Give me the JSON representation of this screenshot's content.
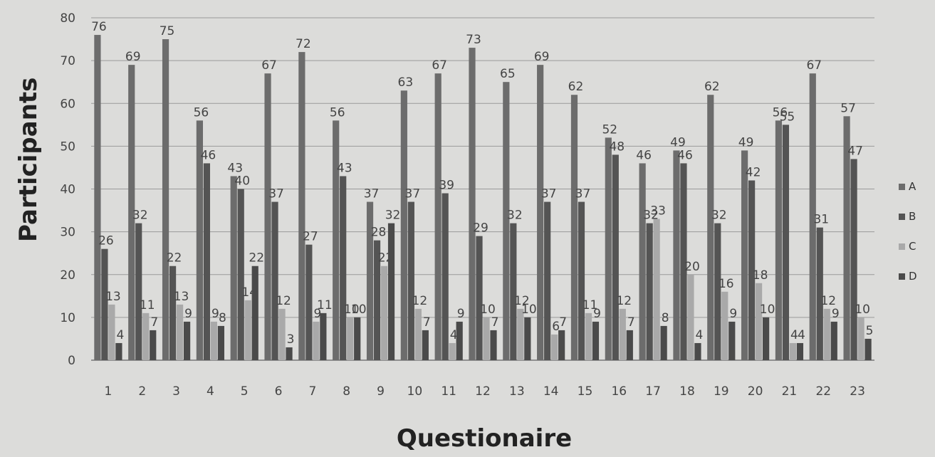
{
  "chart_data": {
    "type": "bar",
    "xlabel": "Questionaire",
    "ylabel": "Participants",
    "ylim": [
      0,
      80
    ],
    "yticks": [
      0,
      10,
      20,
      30,
      40,
      50,
      60,
      70,
      80
    ],
    "grid": true,
    "legend": "right",
    "categories": [
      "1",
      "2",
      "3",
      "4",
      "5",
      "6",
      "7",
      "8",
      "9",
      "10",
      "11",
      "12",
      "13",
      "14",
      "15",
      "16",
      "17",
      "18",
      "19",
      "20",
      "21",
      "22",
      "23"
    ],
    "series": [
      {
        "name": "A",
        "color": "#6c6c6c",
        "values": [
          76,
          69,
          75,
          56,
          43,
          67,
          72,
          56,
          37,
          63,
          67,
          73,
          65,
          69,
          62,
          52,
          46,
          49,
          62,
          49,
          56,
          67,
          57
        ]
      },
      {
        "name": "B",
        "color": "#545454",
        "values": [
          26,
          32,
          22,
          46,
          40,
          37,
          27,
          43,
          28,
          37,
          39,
          29,
          32,
          37,
          37,
          48,
          32,
          46,
          32,
          42,
          55,
          31,
          47
        ]
      },
      {
        "name": "C",
        "color": "#a9a9a9",
        "values": [
          13,
          11,
          13,
          9,
          14,
          12,
          9,
          10,
          22,
          12,
          4,
          10,
          12,
          6,
          11,
          12,
          33,
          20,
          16,
          18,
          4,
          12,
          10
        ]
      },
      {
        "name": "D",
        "color": "#4a4a4a",
        "values": [
          4,
          7,
          9,
          8,
          22,
          3,
          11,
          10,
          32,
          7,
          9,
          7,
          10,
          7,
          9,
          7,
          8,
          4,
          9,
          10,
          4,
          9,
          5
        ]
      }
    ]
  }
}
